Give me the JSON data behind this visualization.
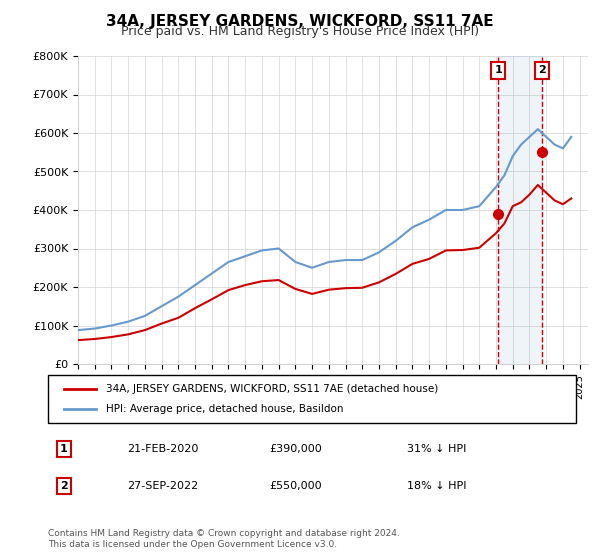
{
  "title": "34A, JERSEY GARDENS, WICKFORD, SS11 7AE",
  "subtitle": "Price paid vs. HM Land Registry's House Price Index (HPI)",
  "ylabel": "",
  "xlabel": "",
  "ylim": [
    0,
    800000
  ],
  "yticks": [
    0,
    100000,
    200000,
    300000,
    400000,
    500000,
    600000,
    700000,
    800000
  ],
  "ytick_labels": [
    "£0",
    "£100K",
    "£200K",
    "£300K",
    "£400K",
    "£500K",
    "£600K",
    "£700K",
    "£800K"
  ],
  "xlim_start": 1995.0,
  "xlim_end": 2025.5,
  "hpi_color": "#6699cc",
  "red_color": "#cc0000",
  "marker1_x": 2020.13,
  "marker1_y": 390000,
  "marker1_label": "21-FEB-2020",
  "marker1_price": "£390,000",
  "marker1_pct": "31% ↓ HPI",
  "marker2_x": 2022.75,
  "marker2_y": 550000,
  "marker2_label": "27-SEP-2022",
  "marker2_price": "£550,000",
  "marker2_pct": "18% ↓ HPI",
  "legend_line1": "34A, JERSEY GARDENS, WICKFORD, SS11 7AE (detached house)",
  "legend_line2": "HPI: Average price, detached house, Basildon",
  "footnote": "Contains HM Land Registry data © Crown copyright and database right 2024.\nThis data is licensed under the Open Government Licence v3.0.",
  "hpi_years": [
    1995,
    1996,
    1997,
    1998,
    1999,
    2000,
    2001,
    2002,
    2003,
    2004,
    2005,
    2006,
    2007,
    2008,
    2009,
    2010,
    2011,
    2012,
    2013,
    2014,
    2015,
    2016,
    2017,
    2018,
    2019,
    2020,
    2020.5,
    2021,
    2021.5,
    2022,
    2022.5,
    2023,
    2023.5,
    2024,
    2024.5
  ],
  "hpi_values": [
    88000,
    92000,
    100000,
    110000,
    125000,
    150000,
    175000,
    205000,
    235000,
    265000,
    280000,
    295000,
    300000,
    265000,
    250000,
    265000,
    270000,
    270000,
    290000,
    320000,
    355000,
    375000,
    400000,
    400000,
    410000,
    460000,
    490000,
    540000,
    570000,
    590000,
    610000,
    590000,
    570000,
    560000,
    590000
  ],
  "red_years": [
    1995,
    1996,
    1997,
    1998,
    1999,
    2000,
    2001,
    2002,
    2003,
    2004,
    2005,
    2006,
    2007,
    2008,
    2009,
    2010,
    2011,
    2012,
    2013,
    2014,
    2015,
    2016,
    2017,
    2018,
    2019,
    2020,
    2020.5,
    2021,
    2021.5,
    2022,
    2022.5,
    2023,
    2023.5,
    2024,
    2024.5
  ],
  "red_values": [
    62000,
    65000,
    70000,
    77000,
    88000,
    105000,
    120000,
    145000,
    168000,
    192000,
    205000,
    215000,
    218000,
    195000,
    182000,
    193000,
    197000,
    198000,
    212000,
    234000,
    260000,
    273000,
    295000,
    296000,
    302000,
    340000,
    365000,
    410000,
    420000,
    440000,
    465000,
    445000,
    425000,
    415000,
    430000
  ]
}
